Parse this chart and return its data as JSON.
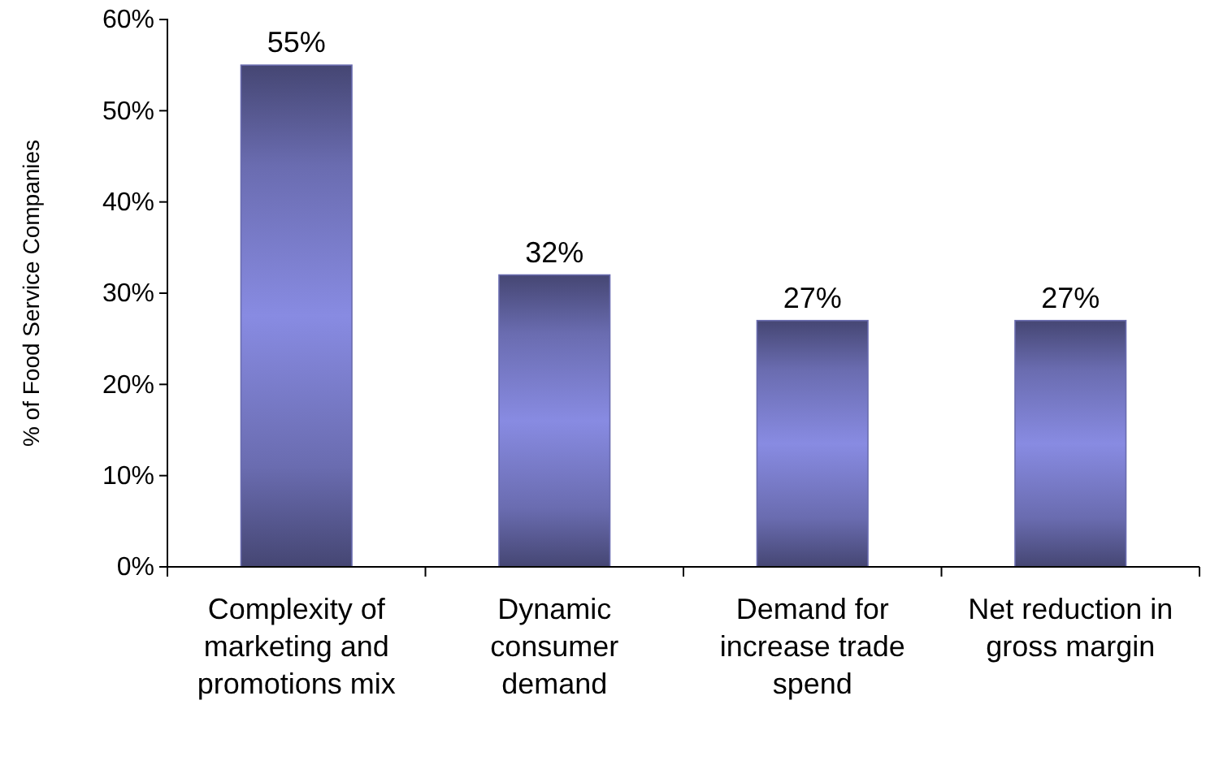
{
  "chart_data": {
    "type": "bar",
    "ylabel": "% of Food Service Companies",
    "categories": [
      "Complexity of marketing and promotions mix",
      "Dynamic consumer demand",
      "Demand for increase trade spend",
      "Net reduction in gross margin"
    ],
    "values": [
      55,
      32,
      27,
      27
    ],
    "color": "#6a6cb0",
    "value_labels": [
      "55%",
      "32%",
      "27%",
      "27%"
    ],
    "ylim": [
      0,
      60
    ],
    "yticks": [
      {
        "value": 0,
        "label": "0%"
      },
      {
        "value": 10,
        "label": "10%"
      },
      {
        "value": 20,
        "label": "20%"
      },
      {
        "value": 30,
        "label": "30%"
      },
      {
        "value": 40,
        "label": "40%"
      },
      {
        "value": 50,
        "label": "50%"
      },
      {
        "value": 60,
        "label": "60%"
      }
    ],
    "grid": false
  }
}
